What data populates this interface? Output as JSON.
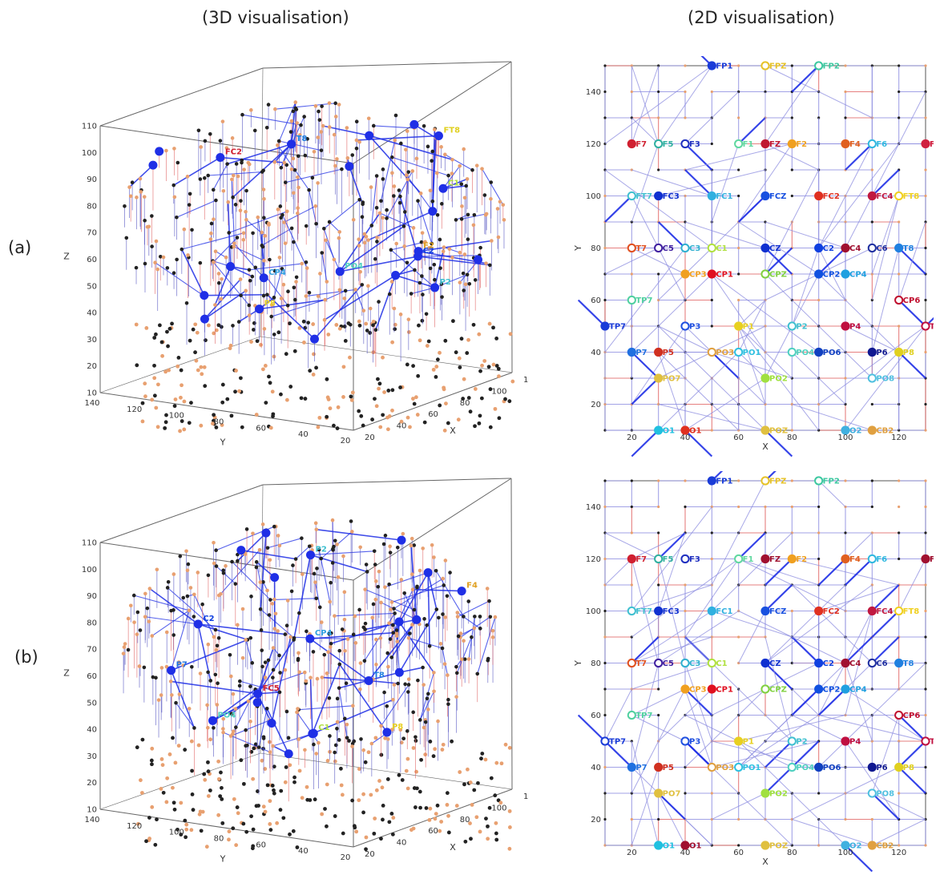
{
  "column_titles": {
    "left": "(3D visualisation)",
    "right": "(2D visualisation)"
  },
  "row_labels": [
    "(a)",
    "(b)"
  ],
  "colors": {
    "edge_strong": "#1f2fe6",
    "edge_light": "#8c8ce0",
    "edge_red": "#e06060",
    "node_dark": "#222222",
    "node_orange": "#e8a070"
  },
  "panel3d": {
    "xlabel": "X",
    "ylabel": "Y",
    "zlabel": "Z",
    "x_ticks": [
      "20",
      "40",
      "60",
      "80",
      "100",
      "120"
    ],
    "y_ticks": [
      "140",
      "120",
      "100",
      "80",
      "60",
      "40",
      "20"
    ],
    "z_ticks": [
      "10",
      "20",
      "30",
      "40",
      "50",
      "60",
      "70",
      "80",
      "90",
      "100",
      "110"
    ]
  },
  "panel2d": {
    "xlabel": "X",
    "ylabel": "Y",
    "x_ticks": [
      "20",
      "40",
      "60",
      "80",
      "100",
      "120"
    ],
    "y_ticks": [
      "20",
      "40",
      "60",
      "80",
      "100",
      "120",
      "140"
    ]
  },
  "panels2d": [
    {
      "electrodes": [
        {
          "label": "FP1",
          "x": 50,
          "y": 150,
          "color": "#1a3cd8",
          "open": false
        },
        {
          "label": "FPZ",
          "x": 70,
          "y": 150,
          "color": "#e6c228",
          "open": true
        },
        {
          "label": "FP2",
          "x": 90,
          "y": 150,
          "color": "#3cc8a0",
          "open": true
        },
        {
          "label": "F7",
          "x": 20,
          "y": 120,
          "color": "#d02030",
          "open": false
        },
        {
          "label": "F5",
          "x": 30,
          "y": 120,
          "color": "#30b0a0",
          "open": true
        },
        {
          "label": "F3",
          "x": 40,
          "y": 120,
          "color": "#2030c0",
          "open": true
        },
        {
          "label": "F1",
          "x": 60,
          "y": 120,
          "color": "#60d8a0",
          "open": true
        },
        {
          "label": "FZ",
          "x": 70,
          "y": 120,
          "color": "#c01830",
          "open": false
        },
        {
          "label": "F2",
          "x": 80,
          "y": 120,
          "color": "#f0a020",
          "open": false
        },
        {
          "label": "F4",
          "x": 100,
          "y": 120,
          "color": "#e06020",
          "open": false
        },
        {
          "label": "F6",
          "x": 110,
          "y": 120,
          "color": "#30b8e0",
          "open": true
        },
        {
          "label": "F8",
          "x": 130,
          "y": 120,
          "color": "#d02040",
          "open": false
        },
        {
          "label": "FT7",
          "x": 20,
          "y": 100,
          "color": "#40c0d0",
          "open": true
        },
        {
          "label": "FC3",
          "x": 30,
          "y": 100,
          "color": "#1030d0",
          "open": false
        },
        {
          "label": "FC1",
          "x": 50,
          "y": 100,
          "color": "#30b0e0",
          "open": false
        },
        {
          "label": "FCZ",
          "x": 70,
          "y": 100,
          "color": "#1850e0",
          "open": false
        },
        {
          "label": "FC2",
          "x": 90,
          "y": 100,
          "color": "#e03020",
          "open": false
        },
        {
          "label": "FC4",
          "x": 110,
          "y": 100,
          "color": "#c01840",
          "open": false
        },
        {
          "label": "FT8",
          "x": 120,
          "y": 100,
          "color": "#f0d020",
          "open": true
        },
        {
          "label": "T7",
          "x": 20,
          "y": 80,
          "color": "#e05020",
          "open": true
        },
        {
          "label": "C5",
          "x": 30,
          "y": 80,
          "color": "#4020a0",
          "open": true
        },
        {
          "label": "C3",
          "x": 40,
          "y": 80,
          "color": "#30b0d0",
          "open": true
        },
        {
          "label": "C1",
          "x": 50,
          "y": 80,
          "color": "#b0e040",
          "open": true
        },
        {
          "label": "CZ",
          "x": 70,
          "y": 80,
          "color": "#1030d0",
          "open": false
        },
        {
          "label": "C2",
          "x": 90,
          "y": 80,
          "color": "#1040e0",
          "open": false
        },
        {
          "label": "C4",
          "x": 100,
          "y": 80,
          "color": "#a01030",
          "open": false
        },
        {
          "label": "C6",
          "x": 110,
          "y": 80,
          "color": "#2030a0",
          "open": true
        },
        {
          "label": "T8",
          "x": 120,
          "y": 80,
          "color": "#2080e0",
          "open": false
        },
        {
          "label": "CP3",
          "x": 40,
          "y": 70,
          "color": "#f0a020",
          "open": false
        },
        {
          "label": "CP1",
          "x": 50,
          "y": 70,
          "color": "#e01020",
          "open": false
        },
        {
          "label": "CPZ",
          "x": 70,
          "y": 70,
          "color": "#80d040",
          "open": true
        },
        {
          "label": "CP2",
          "x": 90,
          "y": 70,
          "color": "#1050e0",
          "open": false
        },
        {
          "label": "CP4",
          "x": 100,
          "y": 70,
          "color": "#20a0e0",
          "open": false
        },
        {
          "label": "TP7",
          "x": 20,
          "y": 60,
          "color": "#50d0a0",
          "open": true
        },
        {
          "label": "CP6",
          "x": 120,
          "y": 60,
          "color": "#c01030",
          "open": true
        },
        {
          "label": "TP7",
          "x": 10,
          "y": 50,
          "color": "#1a3cd8",
          "open": false
        },
        {
          "label": "P3",
          "x": 40,
          "y": 50,
          "color": "#2050e0",
          "open": true
        },
        {
          "label": "P1",
          "x": 60,
          "y": 50,
          "color": "#e8d020",
          "open": false
        },
        {
          "label": "P2",
          "x": 80,
          "y": 50,
          "color": "#40c0d0",
          "open": true
        },
        {
          "label": "P4",
          "x": 100,
          "y": 50,
          "color": "#c01040",
          "open": false
        },
        {
          "label": "TP8",
          "x": 130,
          "y": 50,
          "color": "#c01040",
          "open": true
        },
        {
          "label": "P7",
          "x": 20,
          "y": 40,
          "color": "#2070e0",
          "open": false
        },
        {
          "label": "P5",
          "x": 30,
          "y": 40,
          "color": "#d03020",
          "open": false
        },
        {
          "label": "PO3",
          "x": 50,
          "y": 40,
          "color": "#e0a040",
          "open": true
        },
        {
          "label": "PO1",
          "x": 60,
          "y": 40,
          "color": "#30c0e0",
          "open": true
        },
        {
          "label": "PO4",
          "x": 80,
          "y": 40,
          "color": "#50d0c0",
          "open": true
        },
        {
          "label": "PO6",
          "x": 90,
          "y": 40,
          "color": "#1040c0",
          "open": false
        },
        {
          "label": "P6",
          "x": 110,
          "y": 40,
          "color": "#101890",
          "open": false
        },
        {
          "label": "P8",
          "x": 120,
          "y": 40,
          "color": "#e0d020",
          "open": false
        },
        {
          "label": "PO7",
          "x": 30,
          "y": 30,
          "color": "#e0c040",
          "open": false
        },
        {
          "label": "PO2",
          "x": 70,
          "y": 30,
          "color": "#a0e040",
          "open": false
        },
        {
          "label": "PO8",
          "x": 110,
          "y": 30,
          "color": "#50c0e0",
          "open": true
        },
        {
          "label": "O1",
          "x": 30,
          "y": 10,
          "color": "#20c0e0",
          "open": false
        },
        {
          "label": "O1",
          "x": 40,
          "y": 10,
          "color": "#e03020",
          "open": false
        },
        {
          "label": "POZ",
          "x": 70,
          "y": 10,
          "color": "#e0c040",
          "open": false
        },
        {
          "label": "O2",
          "x": 100,
          "y": 10,
          "color": "#40b0e0",
          "open": false
        },
        {
          "label": "CB2",
          "x": 110,
          "y": 10,
          "color": "#e0a040",
          "open": false
        }
      ]
    },
    {
      "electrodes": [
        {
          "label": "FP1",
          "x": 50,
          "y": 150,
          "color": "#1a3cd8",
          "open": false
        },
        {
          "label": "FPZ",
          "x": 70,
          "y": 150,
          "color": "#e6c228",
          "open": true
        },
        {
          "label": "FP2",
          "x": 90,
          "y": 150,
          "color": "#3cc8a0",
          "open": true
        },
        {
          "label": "F7",
          "x": 20,
          "y": 120,
          "color": "#d02030",
          "open": false
        },
        {
          "label": "F5",
          "x": 30,
          "y": 120,
          "color": "#30b0a0",
          "open": true
        },
        {
          "label": "F3",
          "x": 40,
          "y": 120,
          "color": "#2030c0",
          "open": true
        },
        {
          "label": "F1",
          "x": 60,
          "y": 120,
          "color": "#60d8a0",
          "open": true
        },
        {
          "label": "FZ",
          "x": 70,
          "y": 120,
          "color": "#a01030",
          "open": false
        },
        {
          "label": "F2",
          "x": 80,
          "y": 120,
          "color": "#f0a020",
          "open": false
        },
        {
          "label": "F4",
          "x": 100,
          "y": 120,
          "color": "#e06020",
          "open": false
        },
        {
          "label": "F6",
          "x": 110,
          "y": 120,
          "color": "#30b8e0",
          "open": true
        },
        {
          "label": "F8",
          "x": 130,
          "y": 120,
          "color": "#a01030",
          "open": false
        },
        {
          "label": "FT7",
          "x": 20,
          "y": 100,
          "color": "#40c0d0",
          "open": true
        },
        {
          "label": "FC3",
          "x": 30,
          "y": 100,
          "color": "#1030d0",
          "open": false
        },
        {
          "label": "FC1",
          "x": 50,
          "y": 100,
          "color": "#30b0e0",
          "open": false
        },
        {
          "label": "FCZ",
          "x": 70,
          "y": 100,
          "color": "#1850e0",
          "open": false
        },
        {
          "label": "FC2",
          "x": 90,
          "y": 100,
          "color": "#e03020",
          "open": false
        },
        {
          "label": "FC4",
          "x": 110,
          "y": 100,
          "color": "#c01840",
          "open": false
        },
        {
          "label": "FT8",
          "x": 120,
          "y": 100,
          "color": "#f0d020",
          "open": true
        },
        {
          "label": "T7",
          "x": 20,
          "y": 80,
          "color": "#e05020",
          "open": true
        },
        {
          "label": "C5",
          "x": 30,
          "y": 80,
          "color": "#4020a0",
          "open": true
        },
        {
          "label": "C3",
          "x": 40,
          "y": 80,
          "color": "#30b0d0",
          "open": true
        },
        {
          "label": "C1",
          "x": 50,
          "y": 80,
          "color": "#b0e040",
          "open": true
        },
        {
          "label": "CZ",
          "x": 70,
          "y": 80,
          "color": "#1030d0",
          "open": false
        },
        {
          "label": "C2",
          "x": 90,
          "y": 80,
          "color": "#1040e0",
          "open": false
        },
        {
          "label": "C4",
          "x": 100,
          "y": 80,
          "color": "#a01030",
          "open": false
        },
        {
          "label": "C6",
          "x": 110,
          "y": 80,
          "color": "#2030a0",
          "open": true
        },
        {
          "label": "T8",
          "x": 120,
          "y": 80,
          "color": "#2080e0",
          "open": false
        },
        {
          "label": "CP3",
          "x": 40,
          "y": 70,
          "color": "#f0a020",
          "open": false
        },
        {
          "label": "CP1",
          "x": 50,
          "y": 70,
          "color": "#e01020",
          "open": false
        },
        {
          "label": "CPZ",
          "x": 70,
          "y": 70,
          "color": "#80d040",
          "open": true
        },
        {
          "label": "CP2",
          "x": 90,
          "y": 70,
          "color": "#1050e0",
          "open": false
        },
        {
          "label": "CP4",
          "x": 100,
          "y": 70,
          "color": "#20a0e0",
          "open": false
        },
        {
          "label": "TP7",
          "x": 20,
          "y": 60,
          "color": "#50d0a0",
          "open": true
        },
        {
          "label": "CP6",
          "x": 120,
          "y": 60,
          "color": "#c01030",
          "open": true
        },
        {
          "label": "TP7",
          "x": 10,
          "y": 50,
          "color": "#1a3cd8",
          "open": true
        },
        {
          "label": "P3",
          "x": 40,
          "y": 50,
          "color": "#2050e0",
          "open": true
        },
        {
          "label": "P1",
          "x": 60,
          "y": 50,
          "color": "#e8d020",
          "open": false
        },
        {
          "label": "P2",
          "x": 80,
          "y": 50,
          "color": "#40c0d0",
          "open": true
        },
        {
          "label": "P4",
          "x": 100,
          "y": 50,
          "color": "#c01040",
          "open": false
        },
        {
          "label": "TP8",
          "x": 130,
          "y": 50,
          "color": "#c01040",
          "open": true
        },
        {
          "label": "P7",
          "x": 20,
          "y": 40,
          "color": "#2070e0",
          "open": false
        },
        {
          "label": "P5",
          "x": 30,
          "y": 40,
          "color": "#d03020",
          "open": false
        },
        {
          "label": "PO3",
          "x": 50,
          "y": 40,
          "color": "#e0a040",
          "open": true
        },
        {
          "label": "PO1",
          "x": 60,
          "y": 40,
          "color": "#30c0e0",
          "open": true
        },
        {
          "label": "PO4",
          "x": 80,
          "y": 40,
          "color": "#50d0c0",
          "open": true
        },
        {
          "label": "PO6",
          "x": 90,
          "y": 40,
          "color": "#1040c0",
          "open": false
        },
        {
          "label": "P6",
          "x": 110,
          "y": 40,
          "color": "#101890",
          "open": false
        },
        {
          "label": "P8",
          "x": 120,
          "y": 40,
          "color": "#e0d020",
          "open": false
        },
        {
          "label": "PO7",
          "x": 30,
          "y": 30,
          "color": "#e0c040",
          "open": false
        },
        {
          "label": "PO2",
          "x": 70,
          "y": 30,
          "color": "#a0e040",
          "open": false
        },
        {
          "label": "PO8",
          "x": 110,
          "y": 30,
          "color": "#50c0e0",
          "open": true
        },
        {
          "label": "O1",
          "x": 30,
          "y": 10,
          "color": "#20c0e0",
          "open": false
        },
        {
          "label": "O1",
          "x": 40,
          "y": 10,
          "color": "#a01030",
          "open": false
        },
        {
          "label": "POZ",
          "x": 70,
          "y": 10,
          "color": "#e0c040",
          "open": false
        },
        {
          "label": "O2",
          "x": 100,
          "y": 10,
          "color": "#40b0e0",
          "open": false
        },
        {
          "label": "CB2",
          "x": 110,
          "y": 10,
          "color": "#e0a040",
          "open": false
        }
      ]
    }
  ],
  "panels3d": [
    {
      "electrodes": [
        {
          "label": "FC2",
          "color": "#d02030"
        },
        {
          "label": "CP4",
          "color": "#30a0e0"
        },
        {
          "label": "C2",
          "color": "#1040e0"
        },
        {
          "label": "P2",
          "color": "#40c0d0"
        },
        {
          "label": "F2",
          "color": "#e0a020"
        },
        {
          "label": "T8",
          "color": "#2080e0"
        },
        {
          "label": "FT8",
          "color": "#e0d020"
        },
        {
          "label": "P8",
          "color": "#e8d020"
        },
        {
          "label": "PO4",
          "color": "#50d0c0"
        },
        {
          "label": "C1",
          "color": "#b0e040"
        }
      ]
    },
    {
      "electrodes": [
        {
          "label": "FC5",
          "color": "#d02030"
        },
        {
          "label": "CP4",
          "color": "#30a0e0"
        },
        {
          "label": "C2",
          "color": "#1040e0"
        },
        {
          "label": "P2",
          "color": "#40c0d0"
        },
        {
          "label": "F4",
          "color": "#e0a020"
        },
        {
          "label": "T8",
          "color": "#2080e0"
        },
        {
          "label": "P8",
          "color": "#e8d020"
        },
        {
          "label": "PO4",
          "color": "#50d0c0"
        },
        {
          "label": "P7",
          "color": "#2070e0"
        },
        {
          "label": "C1",
          "color": "#b0e040"
        }
      ]
    }
  ]
}
